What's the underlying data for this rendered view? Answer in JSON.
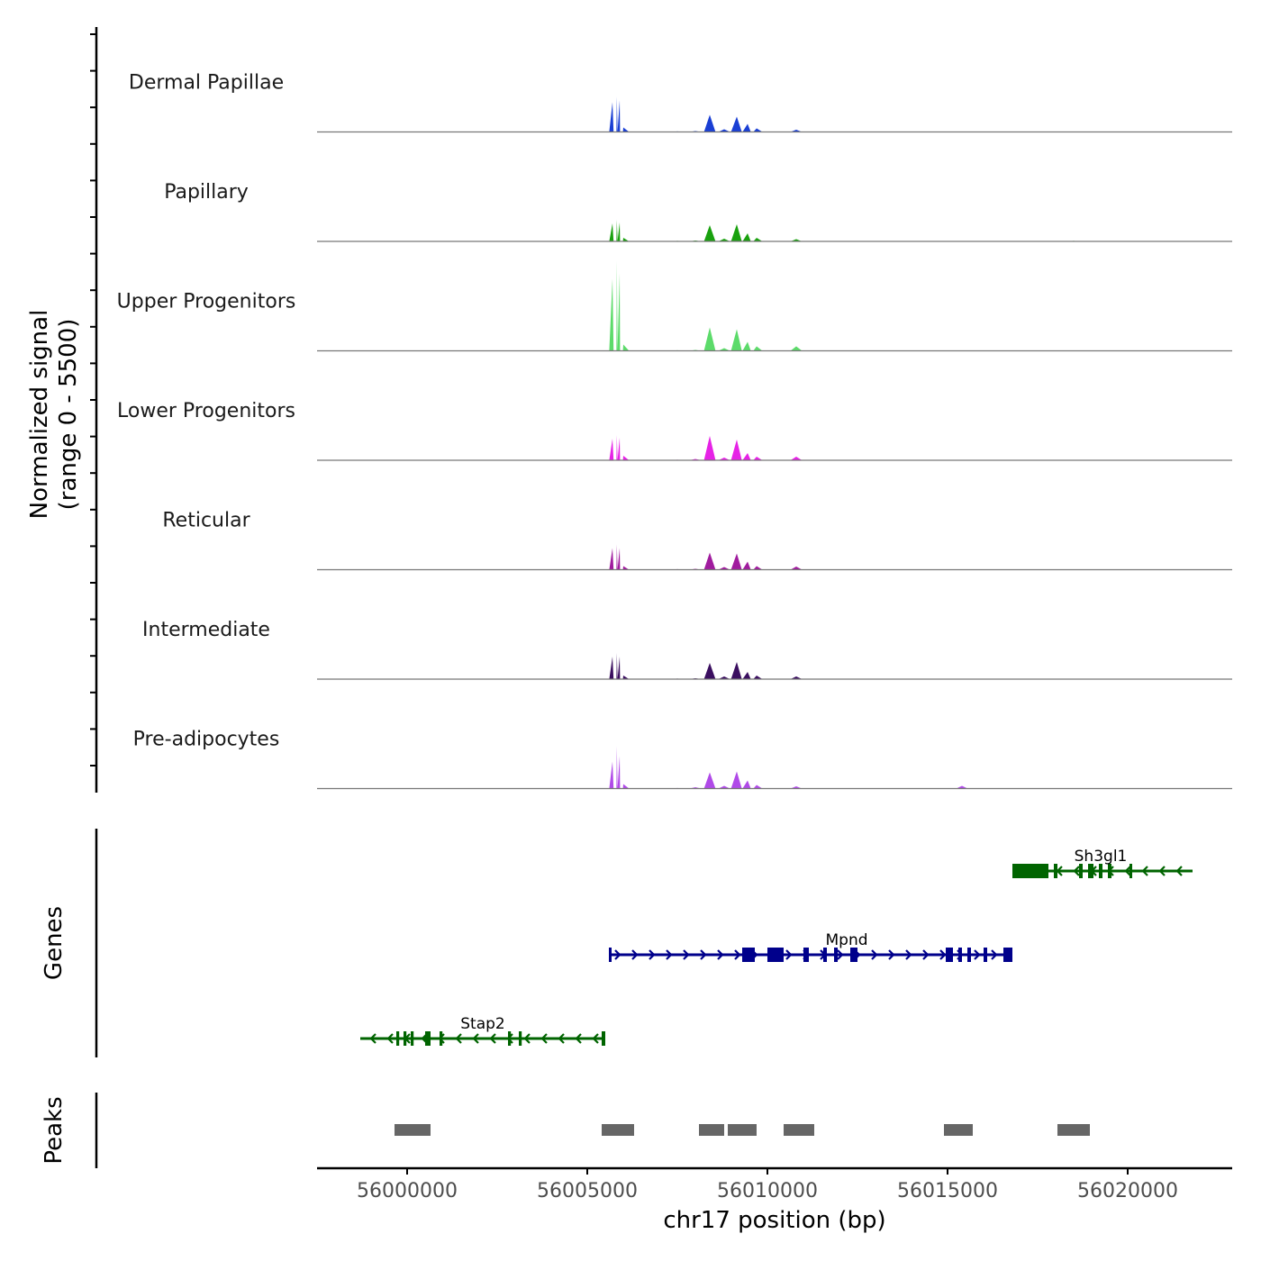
{
  "chart_data": {
    "type": "area",
    "title": "",
    "chromosome": "chr17",
    "xlabel": "chr17 position (bp)",
    "ylabel_line1": "Normalized signal",
    "ylabel_line2": "(range 0 - 5500)",
    "signal_range": [
      0,
      5500
    ],
    "xlim": [
      55997500,
      56022900
    ],
    "x_ticks": [
      56000000,
      56005000,
      56010000,
      56015000,
      56020000
    ],
    "x_tick_labels": [
      "56000000",
      "56005000",
      "56010000",
      "56015000",
      "56020000"
    ],
    "peak_profile": [
      [
        55999800,
        50
      ],
      [
        56000200,
        30
      ],
      [
        56001400,
        20
      ],
      [
        56005700,
        2700
      ],
      [
        56005820,
        3300
      ],
      [
        56005900,
        2900
      ],
      [
        56006000,
        500
      ],
      [
        56007500,
        60
      ],
      [
        56008000,
        100
      ],
      [
        56008400,
        1600
      ],
      [
        56008800,
        300
      ],
      [
        56009150,
        1500
      ],
      [
        56009450,
        800
      ],
      [
        56009700,
        400
      ],
      [
        56010800,
        350
      ],
      [
        56015400,
        80
      ],
      [
        56018500,
        60
      ]
    ],
    "series": [
      {
        "name": "Dermal Papillae",
        "color": "#1a3fd4",
        "values": [
          50,
          30,
          20,
          3300,
          3900,
          3500,
          500,
          60,
          100,
          1900,
          300,
          1700,
          900,
          400,
          250,
          20,
          20
        ]
      },
      {
        "name": "Papillary",
        "color": "#19a10e",
        "values": [
          50,
          30,
          20,
          2000,
          2400,
          2100,
          400,
          60,
          100,
          1800,
          300,
          1900,
          900,
          400,
          250,
          40,
          60
        ]
      },
      {
        "name": "Upper Progenitors",
        "color": "#5cdb6a",
        "values": [
          50,
          30,
          20,
          8000,
          10000,
          8600,
          700,
          60,
          100,
          2600,
          300,
          2400,
          1000,
          500,
          500,
          20,
          20
        ]
      },
      {
        "name": "Lower Progenitors",
        "color": "#e622e6",
        "values": [
          50,
          30,
          20,
          2400,
          2800,
          2500,
          500,
          60,
          150,
          2700,
          300,
          2300,
          800,
          400,
          400,
          40,
          20
        ]
      },
      {
        "name": "Reticular",
        "color": "#a01c9e",
        "values": [
          50,
          30,
          20,
          2400,
          2800,
          2400,
          400,
          60,
          100,
          1900,
          300,
          1800,
          900,
          400,
          350,
          20,
          20
        ]
      },
      {
        "name": "Intermediate",
        "color": "#3b0f60",
        "values": [
          50,
          30,
          20,
          2500,
          2900,
          2500,
          400,
          60,
          100,
          1800,
          300,
          1900,
          800,
          400,
          300,
          20,
          20
        ]
      },
      {
        "name": "Pre-adipocytes",
        "color": "#b04ae8",
        "values": [
          50,
          30,
          20,
          3000,
          4700,
          3600,
          500,
          60,
          150,
          1800,
          300,
          1900,
          900,
          400,
          250,
          300,
          20
        ]
      }
    ],
    "genes_track_label": "Genes",
    "genes": [
      {
        "name": "Sh3gl1",
        "strand": "-",
        "start": 56016800,
        "end": 56021800,
        "color": "#006400",
        "exons": [
          [
            56016800,
            56017800
          ],
          [
            56017950,
            56018050
          ],
          [
            56018650,
            56018750
          ],
          [
            56018900,
            56019050
          ],
          [
            56019200,
            56019300
          ],
          [
            56019450,
            56019550
          ],
          [
            56020050,
            56020120
          ]
        ]
      },
      {
        "name": "Mpnd",
        "strand": "+",
        "start": 56005600,
        "end": 56016800,
        "color": "#00008b",
        "exons": [
          [
            56005600,
            56005650
          ],
          [
            56009300,
            56009650
          ],
          [
            56010000,
            56010450
          ],
          [
            56011000,
            56011150
          ],
          [
            56011550,
            56011650
          ],
          [
            56011850,
            56011950
          ],
          [
            56012300,
            56012500
          ],
          [
            56014950,
            56015150
          ],
          [
            56015300,
            56015400
          ],
          [
            56015550,
            56015650
          ],
          [
            56016000,
            56016100
          ],
          [
            56016550,
            56016800
          ]
        ]
      },
      {
        "name": "Stap2",
        "strand": "-",
        "start": 55998700,
        "end": 56005500,
        "color": "#006400",
        "exons": [
          [
            55999700,
            55999780
          ],
          [
            55999900,
            55999980
          ],
          [
            56000100,
            56000180
          ],
          [
            56000500,
            56000650
          ],
          [
            56000900,
            56000980
          ],
          [
            56002800,
            56002880
          ],
          [
            56003100,
            56003180
          ],
          [
            56005400,
            56005500
          ]
        ]
      }
    ],
    "peaks_track_label": "Peaks",
    "peaks": [
      [
        55999650,
        56000650
      ],
      [
        56005400,
        56006300
      ],
      [
        56008100,
        56008800
      ],
      [
        56008900,
        56009700
      ],
      [
        56010450,
        56011300
      ],
      [
        56014900,
        56015700
      ],
      [
        56018050,
        56018950
      ]
    ]
  }
}
